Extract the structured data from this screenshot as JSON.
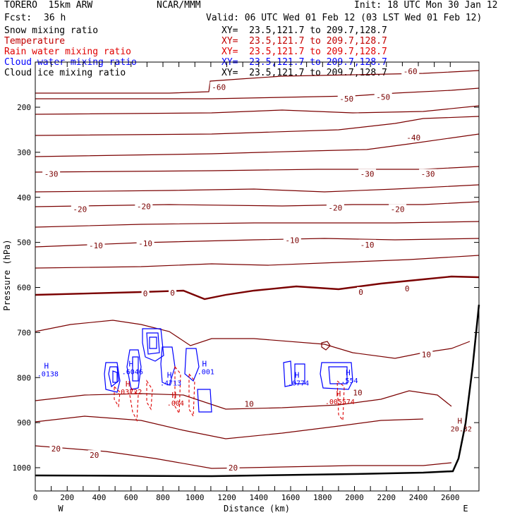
{
  "header": {
    "model": "TORERO  15km ARW",
    "center": "NCAR/MMM",
    "init": "Init: 18 UTC Mon 30 Jan 12",
    "fcst_label": "Fcst:",
    "fcst_value": "36 h",
    "valid": "Valid: 06 UTC Wed 01 Feb 12 (03 LST Wed 01 Feb 12)"
  },
  "fields": [
    {
      "name": "Snow mixing ratio",
      "range": "XY=  23.5,121.7 to 209.7,128.7",
      "color": "#000000"
    },
    {
      "name": "Temperature",
      "range": "XY=  23.5,121.7 to 209.7,128.7",
      "color": "#c00000"
    },
    {
      "name": "Rain water mixing ratio",
      "range": "XY=  23.5,121.7 to 209.7,128.7",
      "color": "#e00000"
    },
    {
      "name": "Cloud water mixing ratio",
      "range": "XY=  23.5,121.7 to 209.7,128.7",
      "color": "#0000ff"
    },
    {
      "name": "Cloud ice mixing ratio",
      "range": "XY=  23.5,121.7 to 209.7,128.7",
      "color": "#000000"
    }
  ],
  "chart_data": {
    "type": "contour-cross-section",
    "xlabel": "Distance (km)",
    "ylabel": "Pressure (hPa)",
    "xlim": [
      0,
      2780
    ],
    "ylim": [
      1050,
      100
    ],
    "x_ticks": [
      0,
      100,
      200,
      300,
      400,
      500,
      600,
      700,
      800,
      900,
      1000,
      1100,
      1200,
      1300,
      1400,
      1500,
      1600,
      1700,
      1800,
      1900,
      2000,
      2100,
      2200,
      2300,
      2400,
      2500,
      2600
    ],
    "x_tick_labels": [
      "0",
      "200",
      "400",
      "600",
      "800",
      "1000",
      "1200",
      "1400",
      "1600",
      "1800",
      "2000",
      "2200",
      "2400",
      "2600"
    ],
    "x_label_values": [
      0,
      200,
      400,
      600,
      800,
      1000,
      1200,
      1400,
      1600,
      1800,
      2000,
      2200,
      2400,
      2600
    ],
    "y_ticks": [
      200,
      300,
      400,
      500,
      600,
      700,
      800,
      900,
      1000
    ],
    "y_tick_labels": [
      "200",
      "300",
      "400",
      "500",
      "600",
      "700",
      "800",
      "900",
      "1000"
    ],
    "west_label": "W",
    "east_label": "E",
    "temperature_labels": [
      {
        "text": "-60",
        "x": 1150,
        "p": 155
      },
      {
        "text": "-60",
        "x": 2350,
        "p": 120
      },
      {
        "text": "-50",
        "x": 1950,
        "p": 181
      },
      {
        "text": "-50",
        "x": 2180,
        "p": 177
      },
      {
        "text": "-40",
        "x": 2370,
        "p": 267
      },
      {
        "text": "-30",
        "x": 100,
        "p": 348
      },
      {
        "text": "-30",
        "x": 2080,
        "p": 348
      },
      {
        "text": "-30",
        "x": 2460,
        "p": 348
      },
      {
        "text": "-20",
        "x": 280,
        "p": 426
      },
      {
        "text": "-20",
        "x": 680,
        "p": 420
      },
      {
        "text": "-20",
        "x": 1880,
        "p": 423
      },
      {
        "text": "-20",
        "x": 2270,
        "p": 426
      },
      {
        "text": "-10",
        "x": 380,
        "p": 507
      },
      {
        "text": "-10",
        "x": 690,
        "p": 502
      },
      {
        "text": "-10",
        "x": 1610,
        "p": 495
      },
      {
        "text": "-10",
        "x": 2080,
        "p": 505
      },
      {
        "text": "0",
        "x": 690,
        "p": 613
      },
      {
        "text": "0",
        "x": 860,
        "p": 612
      },
      {
        "text": "0",
        "x": 2040,
        "p": 610
      },
      {
        "text": "0",
        "x": 2330,
        "p": 602
      },
      {
        "text": "10",
        "x": 1340,
        "p": 858
      },
      {
        "text": "10",
        "x": 2020,
        "p": 833
      },
      {
        "text": "10",
        "x": 2450,
        "p": 749
      },
      {
        "text": "20",
        "x": 130,
        "p": 958
      },
      {
        "text": "20",
        "x": 370,
        "p": 972
      },
      {
        "text": "20",
        "x": 1240,
        "p": 1000
      }
    ],
    "extrema": [
      {
        "mark": "H",
        "value": ".0138",
        "x": 70,
        "p": 780,
        "color": "#0000ff"
      },
      {
        "mark": "H",
        "value": ".6046",
        "x": 600,
        "p": 775,
        "color": "#0000ff"
      },
      {
        "mark": "H",
        "value": ".03722",
        "x": 580,
        "p": 820,
        "color": "#cc0000"
      },
      {
        "mark": "H",
        "value": ".4713",
        "x": 840,
        "p": 800,
        "color": "#0000ff"
      },
      {
        "mark": "H",
        "value": ".004",
        "x": 870,
        "p": 845,
        "color": "#cc0000"
      },
      {
        "mark": "H",
        "value": ".001",
        "x": 1060,
        "p": 775,
        "color": "#0000ff"
      },
      {
        "mark": "H",
        "value": ".0774",
        "x": 1640,
        "p": 800,
        "color": "#0000ff"
      },
      {
        "mark": "H",
        "value": ".554",
        "x": 1960,
        "p": 795,
        "color": "#0000ff"
      },
      {
        "mark": "H",
        "value": ".005574",
        "x": 1900,
        "p": 842,
        "color": "#cc0000"
      },
      {
        "mark": "H",
        "value": "20.32",
        "x": 2660,
        "p": 902,
        "color": "#7a0000"
      }
    ],
    "grid": false,
    "colors": {
      "temperature": "#7a0000",
      "zero_isotherm": "#7a0000",
      "cloud_water": "#0000ff",
      "rain": "#dd0000",
      "terrain": "#000000"
    }
  }
}
